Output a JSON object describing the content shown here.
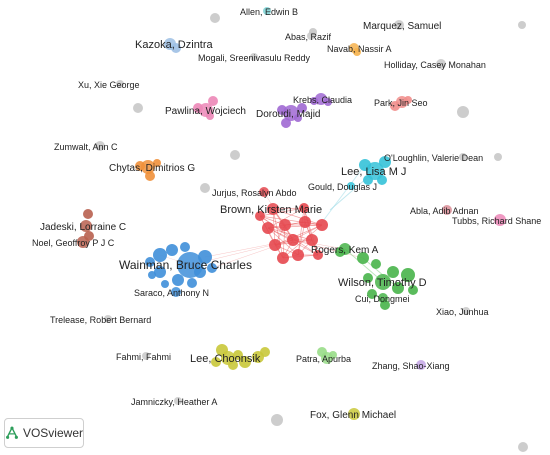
{
  "app": {
    "logo_text": "VOSviewer"
  },
  "colors": {
    "edge_red": "#e8585a",
    "edge_cyan": "#9ad9e5",
    "edge_green": "#8fd48f",
    "gray": "#c8c8c8",
    "red": "#e5484f",
    "blue": "#3f8fd9",
    "green": "#48b44a",
    "yellow": "#c9c83a",
    "cyan": "#35c2d8",
    "purple": "#a069d3",
    "orange": "#f0903a",
    "brown": "#b8604f",
    "pink": "#ec87b7",
    "light_blue": "#9ec0e4",
    "light_green": "#99dd88",
    "salmon": "#f18d8b",
    "teal": "#7cd3d6",
    "amber": "#f6b24d",
    "rose": "#d98d96",
    "lilac": "#c3a4e6",
    "logo_green": "#2e9e5b"
  },
  "network": {
    "nodes": [
      {
        "label": "Allen, Edwin B",
        "color": "teal"
      },
      {
        "label": "Kazoka, Dzintra",
        "color": "light_blue"
      },
      {
        "label": "Abas, Razif",
        "color": "gray"
      },
      {
        "label": "Marquez, Samuel",
        "color": "gray"
      },
      {
        "label": "Navab, Nassir A",
        "color": "amber"
      },
      {
        "label": "Mogali, Sreenivasulu Reddy",
        "color": "gray"
      },
      {
        "label": "Holliday, Casey Monahan",
        "color": "gray"
      },
      {
        "label": "Xu, Xie George",
        "color": "gray"
      },
      {
        "label": "Pawlina, Wojciech",
        "color": "pink"
      },
      {
        "label": "Krebs, Claudia",
        "color": "purple"
      },
      {
        "label": "Doroudi, Majid",
        "color": "purple"
      },
      {
        "label": "Park, Jin Seo",
        "color": "salmon"
      },
      {
        "label": "Zumwalt, Ann C",
        "color": "gray"
      },
      {
        "label": "O'Loughlin, Valerie Dean",
        "color": "gray"
      },
      {
        "label": "Chytas, Dimitrios G",
        "color": "orange"
      },
      {
        "label": "Lee, Lisa M J",
        "color": "cyan"
      },
      {
        "label": "Gould, Douglas J",
        "color": "cyan"
      },
      {
        "label": "Jurjus, Rosalyn Abdo",
        "color": "red"
      },
      {
        "label": "Brown, Kirsten Marie",
        "color": "red"
      },
      {
        "label": "Abla, Adib Adnan",
        "color": "rose"
      },
      {
        "label": "Tubbs, Richard Shane",
        "color": "pink"
      },
      {
        "label": "Jadeski, Lorraine C",
        "color": "brown"
      },
      {
        "label": "Noel, Geoffroy P J C",
        "color": "brown"
      },
      {
        "label": "Rogers, Kem A",
        "color": "green"
      },
      {
        "label": "Wainman, Bruce Charles",
        "color": "blue"
      },
      {
        "label": "Wilson, Timothy D",
        "color": "green"
      },
      {
        "label": "Cui, Dongmei",
        "color": "green"
      },
      {
        "label": "Saraco, Anthony N",
        "color": "blue"
      },
      {
        "label": "Xiao, Junhua",
        "color": "gray"
      },
      {
        "label": "Trelease, Robert Bernard",
        "color": "gray"
      },
      {
        "label": "Fahmi, Fahmi",
        "color": "gray"
      },
      {
        "label": "Lee, Choonsik",
        "color": "yellow"
      },
      {
        "label": "Patra, Apurba",
        "color": "light_green"
      },
      {
        "label": "Zhang, Shao-Xiang",
        "color": "lilac"
      },
      {
        "label": "Jamniczky, Heather A",
        "color": "gray"
      },
      {
        "label": "Fox, Glenn Michael",
        "color": "yellow"
      }
    ]
  }
}
